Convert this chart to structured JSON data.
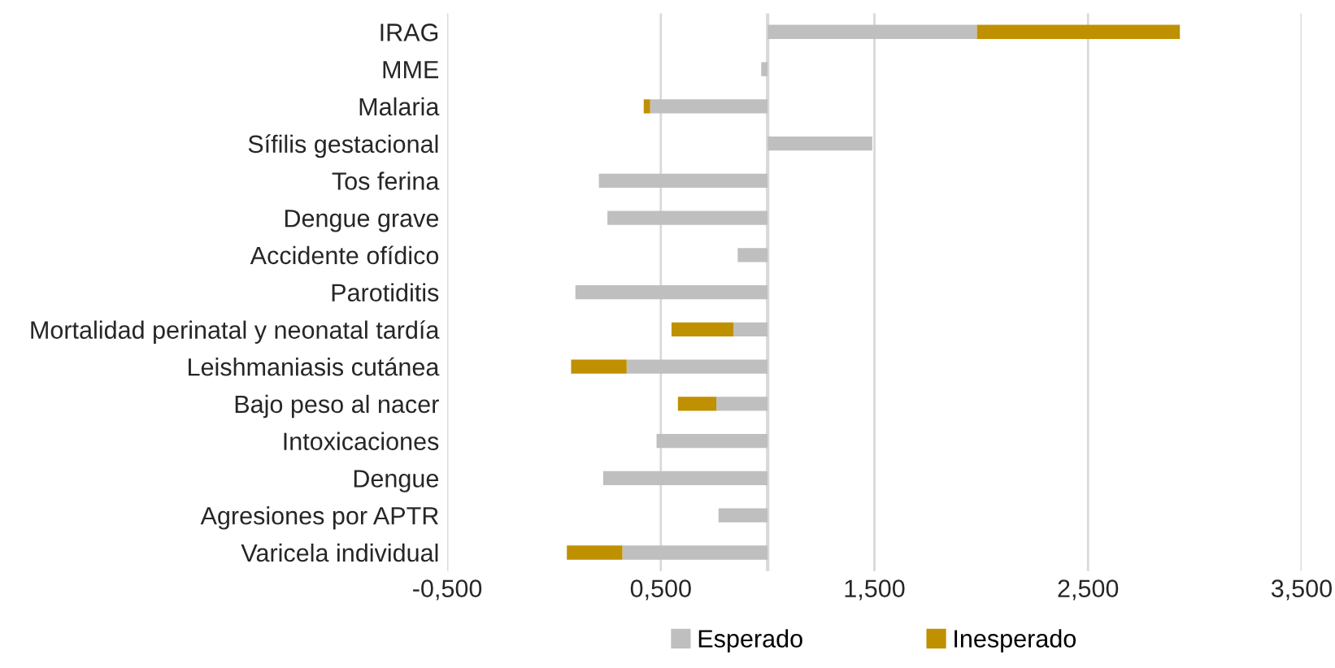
{
  "chart_data": {
    "type": "bar",
    "orientation": "horizontal",
    "categories": [
      "IRAG",
      "MME",
      "Malaria",
      "Sífilis gestacional",
      "Tos ferina",
      "Dengue grave",
      "Accidente ofídico",
      "Parotiditis",
      "Mortalidad perinatal y neonatal tardía",
      "Leishmaniasis cutánea",
      "Bajo peso al nacer",
      "Intoxicaciones",
      "Dengue",
      "Agresiones por APTR",
      "Varicela individual"
    ],
    "series": [
      {
        "name": "Esperado",
        "color": "#bfbfbf",
        "base": [
          1,
          1,
          1,
          1,
          1,
          1,
          1,
          1,
          1,
          1,
          1,
          1,
          1,
          1,
          1
        ],
        "values": [
          0.98,
          -0.03,
          -0.55,
          0.49,
          -0.79,
          -0.75,
          -0.14,
          -0.9,
          -0.16,
          -0.66,
          -0.24,
          -0.52,
          -0.77,
          -0.23,
          -0.68
        ]
      },
      {
        "name": "Inesperado",
        "color": "#bf9000",
        "base": [
          1.98,
          null,
          0.45,
          null,
          null,
          null,
          null,
          null,
          0.84,
          0.34,
          0.76,
          null,
          null,
          null,
          0.32
        ],
        "values": [
          0.95,
          null,
          -0.03,
          null,
          null,
          null,
          null,
          null,
          -0.29,
          -0.26,
          -0.18,
          null,
          null,
          null,
          -0.26
        ]
      }
    ],
    "xlim": [
      -0.5,
      3.5
    ],
    "xticks": [
      {
        "value": -0.5,
        "label": "-0,500"
      },
      {
        "value": 0.5,
        "label": "0,500"
      },
      {
        "value": 1.5,
        "label": "1,500"
      },
      {
        "value": 2.5,
        "label": "2,500"
      },
      {
        "value": 3.5,
        "label": "3,500"
      }
    ],
    "ref_lines": [
      {
        "axis": "x",
        "value": 1,
        "label": null,
        "color": "#d9d9d9"
      }
    ],
    "grid": "x",
    "legend": "bottom"
  }
}
